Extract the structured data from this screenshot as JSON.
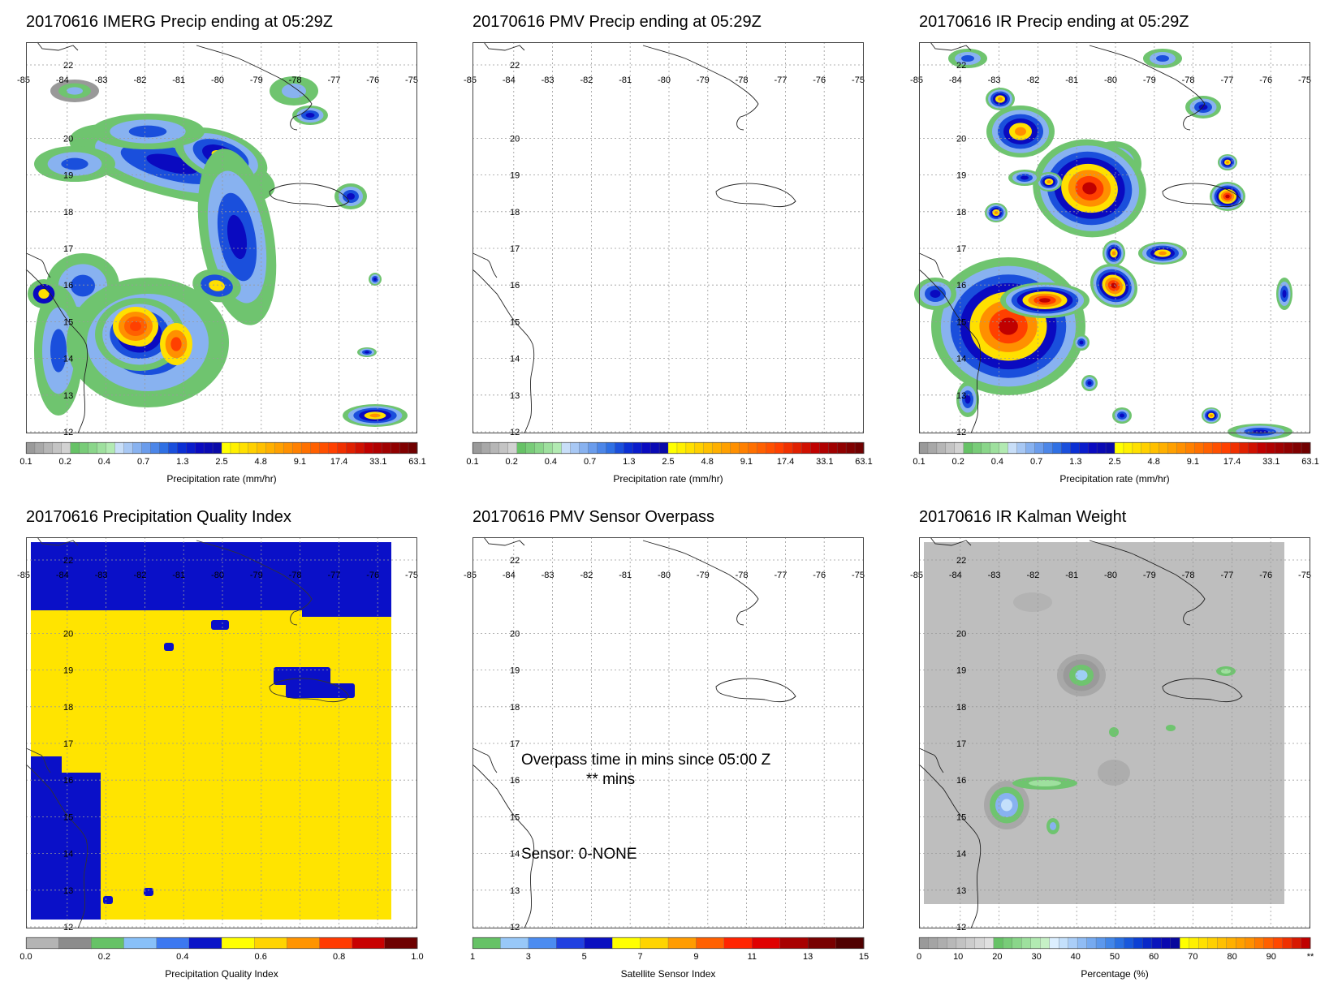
{
  "panels": [
    {
      "id": "p1",
      "title": "20170616 IMERG Precip ending at 05:29Z",
      "field": "imerg",
      "colorbar": "precip",
      "cb_label": "Precipitation rate (mm/hr)"
    },
    {
      "id": "p2",
      "title": "20170616 PMV Precip ending at 05:29Z",
      "field": "empty",
      "colorbar": "precip",
      "cb_label": "Precipitation rate (mm/hr)"
    },
    {
      "id": "p3",
      "title": "20170616 IR Precip ending at 05:29Z",
      "field": "ir",
      "colorbar": "precip",
      "cb_label": "Precipitation rate (mm/hr)"
    },
    {
      "id": "p4",
      "title": "20170616 Precipitation Quality Index",
      "field": "quality",
      "colorbar": "quality",
      "cb_label": "Precipitation Quality Index"
    },
    {
      "id": "p5",
      "title": "20170616 PMV Sensor Overpass",
      "field": "empty",
      "colorbar": "sensor",
      "cb_label": "Satellite Sensor Index"
    },
    {
      "id": "p6",
      "title": "20170616 IR Kalman Weight",
      "field": "kalman",
      "colorbar": "pct",
      "cb_label": "Percentage (%)"
    }
  ],
  "map_axes": {
    "lon_labels": [
      "-85",
      "-84",
      "-83",
      "-82",
      "-81",
      "-80",
      "-79",
      "-78",
      "-77",
      "-76",
      "-75"
    ],
    "lat_labels": [
      "22",
      "20",
      "19",
      "18",
      "17",
      "16",
      "15",
      "14",
      "13",
      "12"
    ]
  },
  "overpass_text": {
    "line1": "Overpass time in mins since 05:00 Z",
    "line2": "** mins",
    "sensor": "Sensor:   0-NONE"
  },
  "colorbars": {
    "precip": {
      "colors": [
        "#9a9a9a",
        "#a8a8a8",
        "#b6b6b6",
        "#c4c4c4",
        "#d2d2d2",
        "#66c266",
        "#78cc78",
        "#8ad68a",
        "#9ee09e",
        "#b2eab2",
        "#c8def8",
        "#a8c8f4",
        "#88b2f0",
        "#6a9cec",
        "#4c86e8",
        "#2f70e4",
        "#1a4fdc",
        "#0b2fd4",
        "#0a1ccc",
        "#0a0ac0",
        "#0a0ab4",
        "#0a0aa8",
        "#ffff00",
        "#fff000",
        "#ffe000",
        "#ffd000",
        "#ffc000",
        "#ffb000",
        "#ffa000",
        "#ff9000",
        "#ff8000",
        "#ff7000",
        "#ff6000",
        "#ff5000",
        "#ff4000",
        "#f03000",
        "#e02000",
        "#d01000",
        "#c00000",
        "#b00000",
        "#a00000",
        "#900000",
        "#800000",
        "#700000"
      ],
      "ticks": [
        "0.1",
        "0.2",
        "0.4",
        "0.7",
        "1.3",
        "2.5",
        "4.8",
        "9.1",
        "17.4",
        "33.1",
        "63.1"
      ]
    },
    "quality": {
      "colors": [
        "#b4b4b4",
        "#8c8c8c",
        "#66c266",
        "#88c0f8",
        "#3c78f0",
        "#0a14c8",
        "#ffff00",
        "#ffd400",
        "#ff9400",
        "#ff3a00",
        "#c80000",
        "#6e0000"
      ],
      "ticks": [
        "0.0",
        "0.2",
        "0.4",
        "0.6",
        "0.8",
        "1.0"
      ]
    },
    "sensor": {
      "colors": [
        "#66c266",
        "#98c8f8",
        "#4c8cf0",
        "#2040e0",
        "#0a10c0",
        "#ffff00",
        "#ffd400",
        "#ff9c00",
        "#ff6000",
        "#ff2400",
        "#e00000",
        "#a80000",
        "#780000",
        "#500000"
      ],
      "ticks": [
        "1",
        "3",
        "5",
        "7",
        "9",
        "11",
        "13",
        "15"
      ]
    },
    "pct": {
      "colors": [
        "#9a9a9a",
        "#a4a4a4",
        "#aeaeae",
        "#b8b8b8",
        "#c2c2c2",
        "#cccccc",
        "#d6d6d6",
        "#e0e0e0",
        "#66c266",
        "#78cc78",
        "#8ad68a",
        "#9ee09e",
        "#b2eab2",
        "#c6f0c6",
        "#dcefff",
        "#c4e0fb",
        "#aacef8",
        "#90bcf4",
        "#76aaf0",
        "#5c98ec",
        "#4286e8",
        "#2a70e2",
        "#1858dc",
        "#0c40d4",
        "#0828c8",
        "#0814bc",
        "#0808b0",
        "#08089c",
        "#ffff00",
        "#fff000",
        "#ffe000",
        "#ffd000",
        "#ffc000",
        "#ffb000",
        "#ffa000",
        "#ff9000",
        "#ff7800",
        "#ff6000",
        "#ff4800",
        "#f03000",
        "#d81800",
        "#c00000"
      ],
      "ticks": [
        "0",
        "10",
        "20",
        "30",
        "40",
        "50",
        "60",
        "70",
        "80",
        "90",
        "**"
      ]
    }
  }
}
